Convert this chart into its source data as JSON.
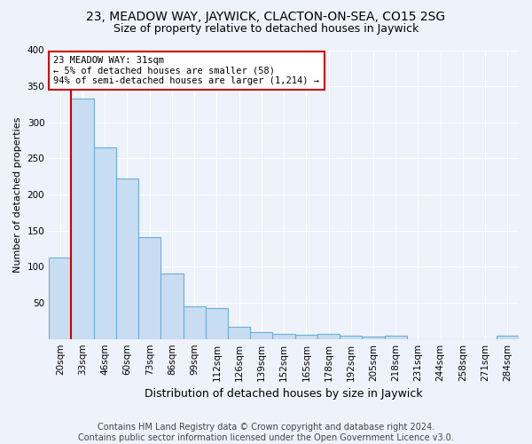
{
  "title": "23, MEADOW WAY, JAYWICK, CLACTON-ON-SEA, CO15 2SG",
  "subtitle": "Size of property relative to detached houses in Jaywick",
  "xlabel": "Distribution of detached houses by size in Jaywick",
  "ylabel": "Number of detached properties",
  "footer_line1": "Contains HM Land Registry data © Crown copyright and database right 2024.",
  "footer_line2": "Contains public sector information licensed under the Open Government Licence v3.0.",
  "categories": [
    "20sqm",
    "33sqm",
    "46sqm",
    "60sqm",
    "73sqm",
    "86sqm",
    "99sqm",
    "112sqm",
    "126sqm",
    "139sqm",
    "152sqm",
    "165sqm",
    "178sqm",
    "192sqm",
    "205sqm",
    "218sqm",
    "231sqm",
    "244sqm",
    "258sqm",
    "271sqm",
    "284sqm"
  ],
  "values": [
    113,
    333,
    265,
    222,
    141,
    91,
    45,
    43,
    17,
    10,
    7,
    6,
    7,
    4,
    3,
    4,
    0,
    0,
    0,
    0,
    5
  ],
  "bar_color": "#c9ddf2",
  "bar_edge_color": "#6aaed6",
  "background_color": "#eef2fb",
  "grid_color": "#ffffff",
  "red_line_x": 0.5,
  "annotation_line1": "23 MEADOW WAY: 31sqm",
  "annotation_line2": "← 5% of detached houses are smaller (58)",
  "annotation_line3": "94% of semi-detached houses are larger (1,214) →",
  "annotation_box_color": "#ffffff",
  "annotation_box_edge_color": "#cc0000",
  "red_line_color": "#cc0000",
  "ylim": [
    0,
    400
  ],
  "yticks": [
    0,
    50,
    100,
    150,
    200,
    250,
    300,
    350,
    400
  ],
  "title_fontsize": 10,
  "subtitle_fontsize": 9,
  "ylabel_fontsize": 8,
  "xlabel_fontsize": 9,
  "tick_fontsize": 7.5,
  "footer_fontsize": 7
}
